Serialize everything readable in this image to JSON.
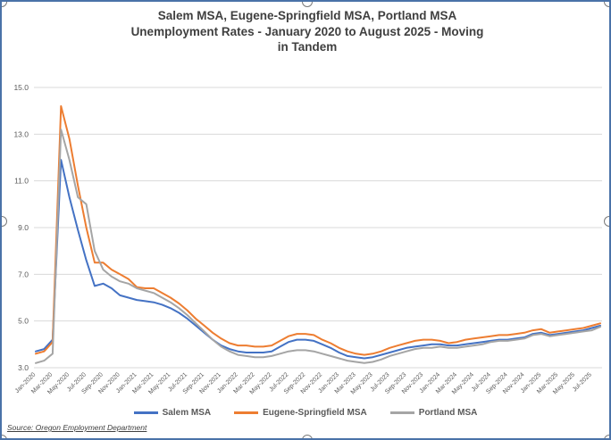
{
  "source_note": "Source: Oregon Employment Department",
  "colors": {
    "salem": "#4472C4",
    "eugene": "#ED7D31",
    "portland": "#A5A5A5",
    "gridline": "#D9D9D9",
    "axis_text": "#595959",
    "title_text": "#3F3F3F",
    "selection_border": "#4A72A8"
  },
  "chart_data": {
    "type": "line",
    "title": "Salem MSA, Eugene-Springfield MSA, Portland MSA Unemployment Rates - January 2020 to August 2025 -  Moving in Tandem",
    "title_lines": [
      "Salem MSA, Eugene-Springfield MSA, Portland MSA",
      "Unemployment Rates - January 2020 to August 2025 -  Moving",
      "in Tandem"
    ],
    "xlabel": "",
    "ylabel": "",
    "ylim": [
      3.0,
      15.0
    ],
    "ytick_labels": [
      "3.0",
      "5.0",
      "7.0",
      "9.0",
      "11.0",
      "13.0",
      "15.0"
    ],
    "grid": true,
    "legend_position": "bottom",
    "x_tick_every": 2,
    "categories": [
      "Jan-2020",
      "Feb-2020",
      "Mar-2020",
      "Apr-2020",
      "May-2020",
      "Jun-2020",
      "Jul-2020",
      "Aug-2020",
      "Sep-2020",
      "Oct-2020",
      "Nov-2020",
      "Dec-2020",
      "Jan-2021",
      "Feb-2021",
      "Mar-2021",
      "Apr-2021",
      "May-2021",
      "Jun-2021",
      "Jul-2021",
      "Aug-2021",
      "Sep-2021",
      "Oct-2021",
      "Nov-2021",
      "Dec-2021",
      "Jan-2022",
      "Feb-2022",
      "Mar-2022",
      "Apr-2022",
      "May-2022",
      "Jun-2022",
      "Jul-2022",
      "Aug-2022",
      "Sep-2022",
      "Oct-2022",
      "Nov-2022",
      "Dec-2022",
      "Jan-2023",
      "Feb-2023",
      "Mar-2023",
      "Apr-2023",
      "May-2023",
      "Jun-2023",
      "Jul-2023",
      "Aug-2023",
      "Sep-2023",
      "Oct-2023",
      "Nov-2023",
      "Dec-2023",
      "Jan-2024",
      "Feb-2024",
      "Mar-2024",
      "Apr-2024",
      "May-2024",
      "Jun-2024",
      "Jul-2024",
      "Aug-2024",
      "Sep-2024",
      "Oct-2024",
      "Nov-2024",
      "Dec-2024",
      "Jan-2025",
      "Feb-2025",
      "Mar-2025",
      "Apr-2025",
      "May-2025",
      "Jun-2025",
      "Jul-2025",
      "Aug-2025"
    ],
    "series": [
      {
        "name": "Salem MSA",
        "color": "#4472C4",
        "values": [
          3.7,
          3.8,
          4.2,
          11.9,
          10.3,
          8.9,
          7.6,
          6.5,
          6.6,
          6.4,
          6.1,
          6.0,
          5.9,
          5.85,
          5.8,
          5.7,
          5.55,
          5.35,
          5.1,
          4.8,
          4.5,
          4.2,
          3.95,
          3.8,
          3.7,
          3.65,
          3.65,
          3.65,
          3.7,
          3.9,
          4.1,
          4.2,
          4.2,
          4.15,
          4.0,
          3.85,
          3.65,
          3.5,
          3.45,
          3.4,
          3.45,
          3.55,
          3.65,
          3.75,
          3.85,
          3.9,
          3.95,
          4.0,
          4.0,
          3.95,
          3.95,
          4.0,
          4.05,
          4.1,
          4.15,
          4.2,
          4.2,
          4.25,
          4.3,
          4.45,
          4.5,
          4.4,
          4.45,
          4.5,
          4.55,
          4.6,
          4.7,
          4.8
        ]
      },
      {
        "name": "Eugene-Springfield MSA",
        "color": "#ED7D31",
        "values": [
          3.6,
          3.7,
          4.1,
          14.2,
          12.8,
          10.8,
          9.0,
          7.5,
          7.5,
          7.2,
          7.0,
          6.8,
          6.45,
          6.4,
          6.4,
          6.2,
          6.0,
          5.75,
          5.45,
          5.1,
          4.8,
          4.5,
          4.25,
          4.05,
          3.95,
          3.95,
          3.9,
          3.9,
          3.95,
          4.15,
          4.35,
          4.45,
          4.45,
          4.4,
          4.2,
          4.05,
          3.85,
          3.7,
          3.6,
          3.55,
          3.6,
          3.7,
          3.85,
          3.95,
          4.05,
          4.15,
          4.2,
          4.2,
          4.15,
          4.05,
          4.1,
          4.2,
          4.25,
          4.3,
          4.35,
          4.4,
          4.4,
          4.45,
          4.5,
          4.6,
          4.65,
          4.5,
          4.55,
          4.6,
          4.65,
          4.7,
          4.8,
          4.9
        ]
      },
      {
        "name": "Portland MSA",
        "color": "#A5A5A5",
        "values": [
          3.2,
          3.3,
          3.6,
          13.2,
          11.9,
          10.3,
          10.0,
          8.0,
          7.2,
          6.9,
          6.7,
          6.6,
          6.4,
          6.3,
          6.2,
          6.0,
          5.8,
          5.55,
          5.25,
          4.9,
          4.55,
          4.2,
          3.9,
          3.7,
          3.55,
          3.5,
          3.45,
          3.45,
          3.5,
          3.6,
          3.7,
          3.75,
          3.75,
          3.7,
          3.6,
          3.5,
          3.4,
          3.3,
          3.25,
          3.2,
          3.25,
          3.35,
          3.5,
          3.6,
          3.7,
          3.8,
          3.85,
          3.85,
          3.9,
          3.85,
          3.85,
          3.9,
          3.95,
          4.0,
          4.1,
          4.15,
          4.15,
          4.2,
          4.25,
          4.4,
          4.45,
          4.35,
          4.4,
          4.45,
          4.5,
          4.55,
          4.6,
          4.75
        ]
      }
    ]
  }
}
